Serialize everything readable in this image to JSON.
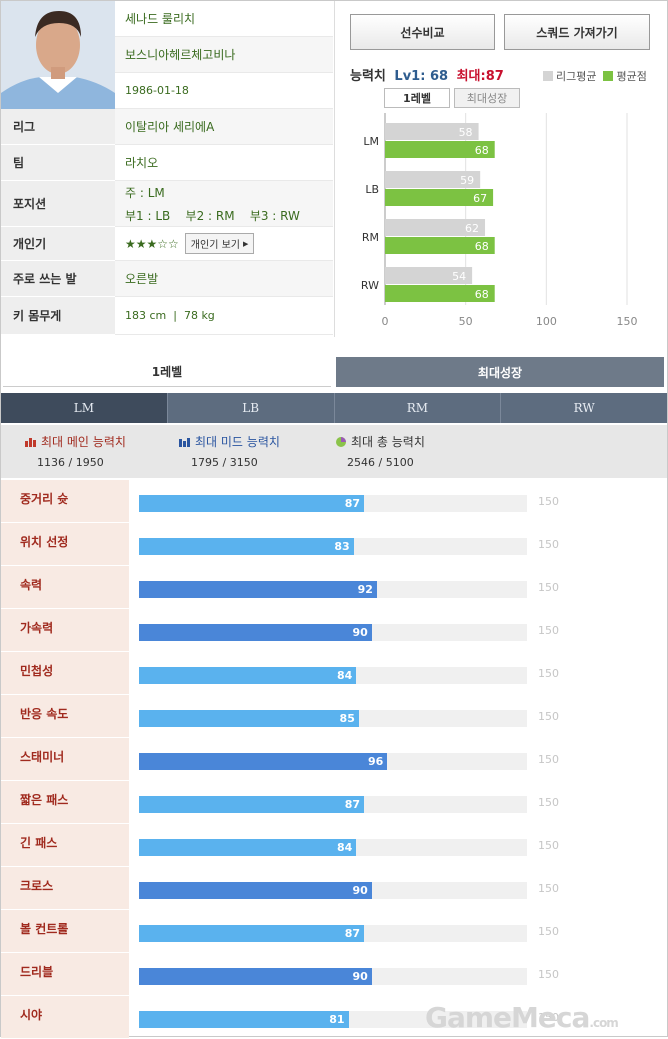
{
  "player": {
    "name": "세나드 룰리치",
    "country": "보스니아헤르체고비나",
    "birth": "1986-01-18",
    "league_label": "리그",
    "league": "이탈리아 세리에A",
    "team_label": "팀",
    "team": "라치오",
    "position_label": "포지션",
    "position_main": "주 : LM",
    "position_sub": "부1 : LB    부2 : RM    부3 : RW",
    "skill_label": "개인기",
    "skill_stars": "★★★☆☆",
    "skill_button": "개인기 보기",
    "foot_label": "주로 쓰는 발",
    "foot": "오른발",
    "body_label": "키 몸무게",
    "body": "183 cm  |  78 kg"
  },
  "buttons": {
    "compare": "선수비교",
    "squad": "스쿼드 가져가기"
  },
  "ability": {
    "title": "능력치",
    "lv": "Lv1: 68",
    "max": "최대:87",
    "legend_league": "리그평균",
    "legend_avg": "평균점",
    "tab_lv1": "1레벨",
    "tab_max": "최대성장"
  },
  "chart_data": {
    "type": "bar",
    "categories": [
      "LM",
      "LB",
      "RM",
      "RW"
    ],
    "series": [
      {
        "name": "리그평균",
        "values": [
          58,
          59,
          62,
          54
        ],
        "color": "#d4d4d4"
      },
      {
        "name": "평균점",
        "values": [
          68,
          67,
          68,
          68
        ],
        "color": "#7cc242"
      }
    ],
    "xlim": [
      0,
      150
    ],
    "xticks": [
      "0",
      "50",
      "100",
      "150"
    ]
  },
  "level_tabs": {
    "lv1": "1레벨",
    "max": "최대성장"
  },
  "positions": [
    "LM",
    "LB",
    "RM",
    "RW"
  ],
  "summary": {
    "main": {
      "title": "최대 메인 능력치",
      "value": "1136 / 1950"
    },
    "mid": {
      "title": "최대 미드 능력치",
      "value": "1795 / 3150"
    },
    "total": {
      "title": "최대 총 능력치",
      "value": "2546 / 5100"
    }
  },
  "stats_max": "150",
  "stats": [
    {
      "name": "중거리 슛",
      "value": 87,
      "type": "mid"
    },
    {
      "name": "위치 선정",
      "value": 83,
      "type": "mid"
    },
    {
      "name": "속력",
      "value": 92,
      "type": "main"
    },
    {
      "name": "가속력",
      "value": 90,
      "type": "main"
    },
    {
      "name": "민첩성",
      "value": 84,
      "type": "mid"
    },
    {
      "name": "반응 속도",
      "value": 85,
      "type": "mid"
    },
    {
      "name": "스태미너",
      "value": 96,
      "type": "main"
    },
    {
      "name": "짧은 패스",
      "value": 87,
      "type": "mid"
    },
    {
      "name": "긴 패스",
      "value": 84,
      "type": "mid"
    },
    {
      "name": "크로스",
      "value": 90,
      "type": "main"
    },
    {
      "name": "볼 컨트롤",
      "value": 87,
      "type": "mid"
    },
    {
      "name": "드리블",
      "value": 90,
      "type": "main"
    },
    {
      "name": "시야",
      "value": 81,
      "type": "mid"
    }
  ],
  "colors": {
    "main": "#4a86d8",
    "mid": "#5ab2ee"
  },
  "watermark": "GameMeca.com"
}
